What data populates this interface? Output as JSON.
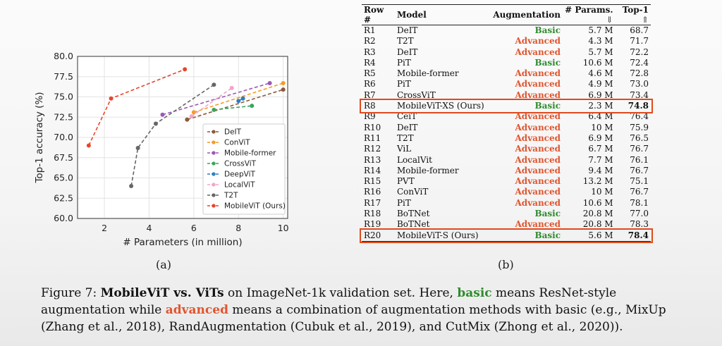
{
  "chart_data": {
    "type": "line",
    "xlabel": "# Parameters (in million)",
    "ylabel": "Top-1 accuracy (%)",
    "xlim": [
      0.8,
      10.2
    ],
    "ylim": [
      60.0,
      80.0
    ],
    "xticks": [
      "2",
      "4",
      "6",
      "8",
      "10"
    ],
    "yticks": [
      "60.0",
      "62.5",
      "65.0",
      "67.5",
      "70.0",
      "72.5",
      "75.0",
      "77.5",
      "80.0"
    ],
    "legend_position": "lower-right",
    "grid": true,
    "series": [
      {
        "name": "DeIT",
        "color": "#8c5a3a",
        "x": [
          5.7,
          10.0
        ],
        "y": [
          72.2,
          75.9
        ]
      },
      {
        "name": "ConViT",
        "color": "#f39c24",
        "x": [
          6.0,
          10.0
        ],
        "y": [
          73.1,
          76.7
        ]
      },
      {
        "name": "Mobile-former",
        "color": "#9b59b6",
        "x": [
          4.6,
          9.4
        ],
        "y": [
          72.8,
          76.7
        ]
      },
      {
        "name": "CrossViT",
        "color": "#3aa55b",
        "x": [
          6.9,
          8.6
        ],
        "y": [
          73.4,
          73.9
        ]
      },
      {
        "name": "DeepViT",
        "color": "#2f7fbf",
        "x": [
          8.0,
          8.2
        ],
        "y": [
          74.5,
          74.8
        ]
      },
      {
        "name": "LocalViT",
        "color": "#f5a3c7",
        "x": [
          5.9,
          7.7
        ],
        "y": [
          72.6,
          76.1
        ]
      },
      {
        "name": "T2T",
        "color": "#666666",
        "x": [
          3.2,
          3.5,
          4.3,
          6.9
        ],
        "y": [
          64.0,
          68.7,
          71.7,
          76.5
        ]
      },
      {
        "name": "MobileViT (Ours)",
        "color": "#e8452c",
        "x": [
          1.3,
          2.3,
          5.6
        ],
        "y": [
          69.0,
          74.8,
          78.4
        ]
      }
    ]
  },
  "labels": {
    "a": "(a)",
    "b": "(b)"
  },
  "table": {
    "headers": {
      "row": "Row #",
      "model": "Model",
      "augmentation": "Augmentation",
      "params": "# Params.",
      "params_arrow": "⇓",
      "top1": "Top-1",
      "top1_arrow": "⇑"
    },
    "rows": [
      {
        "row": "R1",
        "model": "DeIT",
        "aug": "Basic",
        "params": "5.7 M",
        "top1": "68.7"
      },
      {
        "row": "R2",
        "model": "T2T",
        "aug": "Advanced",
        "params": "4.3 M",
        "top1": "71.7"
      },
      {
        "row": "R3",
        "model": "DeIT",
        "aug": "Advanced",
        "params": "5.7 M",
        "top1": "72.2"
      },
      {
        "row": "R4",
        "model": "PiT",
        "aug": "Basic",
        "params": "10.6 M",
        "top1": "72.4"
      },
      {
        "row": "R5",
        "model": "Mobile-former",
        "aug": "Advanced",
        "params": "4.6 M",
        "top1": "72.8"
      },
      {
        "row": "R6",
        "model": "PiT",
        "aug": "Advanced",
        "params": "4.9 M",
        "top1": "73.0"
      },
      {
        "row": "R7",
        "model": "CrossViT",
        "aug": "Advanced",
        "params": "6.9 M",
        "top1": "73.4"
      },
      {
        "row": "R8",
        "model": "MobileViT-XS (Ours)",
        "aug": "Basic",
        "params": "2.3 M",
        "top1": "74.8",
        "highlight": true
      },
      {
        "row": "R9",
        "model": "CeiT",
        "aug": "Advanced",
        "params": "6.4 M",
        "top1": "76.4"
      },
      {
        "row": "R10",
        "model": "DeIT",
        "aug": "Advanced",
        "params": "10 M",
        "top1": "75.9"
      },
      {
        "row": "R11",
        "model": "T2T",
        "aug": "Advanced",
        "params": "6.9 M",
        "top1": "76.5"
      },
      {
        "row": "R12",
        "model": "ViL",
        "aug": "Advanced",
        "params": "6.7 M",
        "top1": "76.7"
      },
      {
        "row": "R13",
        "model": "LocalVit",
        "aug": "Advanced",
        "params": "7.7 M",
        "top1": "76.1"
      },
      {
        "row": "R14",
        "model": "Mobile-former",
        "aug": "Advanced",
        "params": "9.4 M",
        "top1": "76.7"
      },
      {
        "row": "R15",
        "model": "PVT",
        "aug": "Advanced",
        "params": "13.2 M",
        "top1": "75.1"
      },
      {
        "row": "R16",
        "model": "ConViT",
        "aug": "Advanced",
        "params": "10 M",
        "top1": "76.7"
      },
      {
        "row": "R17",
        "model": "PiT",
        "aug": "Advanced",
        "params": "10.6 M",
        "top1": "78.1"
      },
      {
        "row": "R18",
        "model": "BoTNet",
        "aug": "Basic",
        "params": "20.8 M",
        "top1": "77.0"
      },
      {
        "row": "R19",
        "model": "BoTNet",
        "aug": "Advanced",
        "params": "20.8 M",
        "top1": "78.3"
      },
      {
        "row": "R20",
        "model": "MobileViT-S (Ours)",
        "aug": "Basic",
        "params": "5.6 M",
        "top1": "78.4",
        "highlight": true
      }
    ]
  },
  "caption": {
    "prefix": "Figure 7: ",
    "bold_title": "MobileViT vs. ViTs",
    "part1": " on ImageNet-1k validation set. Here, ",
    "basic_word": "basic",
    "part2": " means ResNet-style augmentation while ",
    "advanced_word": "advanced",
    "part3": " means a combination of augmentation methods with basic (e.g., MixUp (Zhang et al., 2018), RandAugmentation (Cubuk et al., 2019), and CutMix (Zhong et al., 2020))."
  },
  "colors": {
    "basic": "#2e8b2e",
    "advanced": "#e0552f",
    "highlight_box": "#e04a1c"
  }
}
